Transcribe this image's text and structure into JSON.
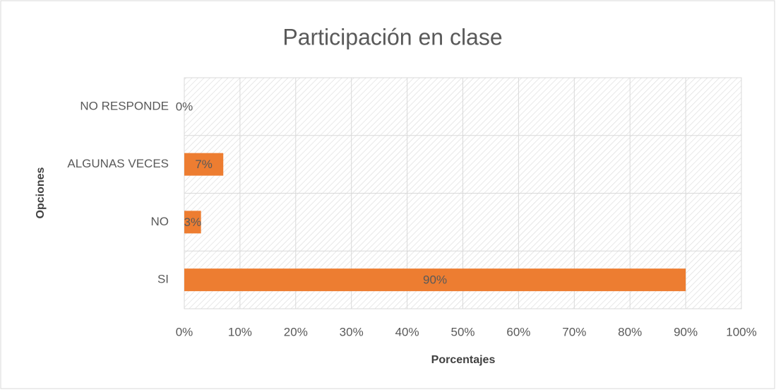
{
  "chart_data": {
    "type": "bar",
    "orientation": "horizontal",
    "title": "Participación en clase",
    "x_label": "Porcentajes",
    "y_label": "Opciones",
    "categories": [
      "SI",
      "NO",
      "ALGUNAS VECES",
      "NO RESPONDE"
    ],
    "values": [
      90,
      3,
      7,
      0
    ],
    "value_labels": [
      "90%",
      "3%",
      "7%",
      "0%"
    ],
    "color": "#ed7d31",
    "xlim": [
      0,
      100
    ],
    "xticks": [
      {
        "value": 0,
        "label": "0%"
      },
      {
        "value": 10,
        "label": "10%"
      },
      {
        "value": 20,
        "label": "20%"
      },
      {
        "value": 30,
        "label": "30%"
      },
      {
        "value": 40,
        "label": "40%"
      },
      {
        "value": 50,
        "label": "50%"
      },
      {
        "value": 60,
        "label": "60%"
      },
      {
        "value": 70,
        "label": "70%"
      },
      {
        "value": 80,
        "label": "80%"
      },
      {
        "value": 90,
        "label": "90%"
      },
      {
        "value": 100,
        "label": "100%"
      }
    ],
    "grid": true
  }
}
